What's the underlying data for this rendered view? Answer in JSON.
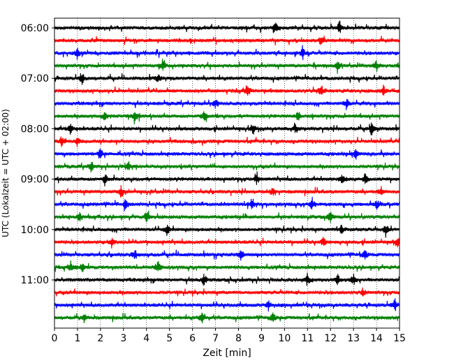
{
  "chart_data": {
    "type": "line",
    "title": "",
    "xlabel": "Zeit  [min]",
    "ylabel": "UTC (Lokalzeit = UTC + 02:00)",
    "xlim": [
      0,
      15
    ],
    "x_ticks": [
      "0",
      "1",
      "2",
      "3",
      "4",
      "5",
      "6",
      "7",
      "8",
      "9",
      "10",
      "11",
      "12",
      "13",
      "14",
      "15"
    ],
    "y_tick_labels": [
      "06:00",
      "07:00",
      "08:00",
      "09:00",
      "10:00",
      "11:00"
    ],
    "grid": "vertical dotted lines at each minute",
    "line_colors": [
      "#000000",
      "#ff0000",
      "#0000ff",
      "#008000"
    ],
    "rows": [
      {
        "time": "06:00",
        "color": "#000000",
        "events": [
          9.6,
          12.4
        ]
      },
      {
        "time": "06:15",
        "color": "#ff0000",
        "events": [
          11.6
        ]
      },
      {
        "time": "06:30",
        "color": "#0000ff",
        "events": [
          1.0,
          10.8
        ]
      },
      {
        "time": "06:45",
        "color": "#008000",
        "events": [
          4.7,
          12.3,
          14.0
        ]
      },
      {
        "time": "07:00",
        "color": "#000000",
        "events": [
          1.2,
          4.5
        ]
      },
      {
        "time": "07:15",
        "color": "#ff0000",
        "events": [
          8.4,
          11.6,
          14.3
        ]
      },
      {
        "time": "07:30",
        "color": "#0000ff",
        "events": [
          7.0,
          12.7
        ]
      },
      {
        "time": "07:45",
        "color": "#008000",
        "events": [
          2.2,
          3.5,
          6.5,
          10.6
        ]
      },
      {
        "time": "08:00",
        "color": "#000000",
        "events": [
          0.7,
          8.6,
          10.5,
          13.8
        ]
      },
      {
        "time": "08:15",
        "color": "#ff0000",
        "events": [
          0.3,
          1.0
        ]
      },
      {
        "time": "08:30",
        "color": "#0000ff",
        "events": [
          2.0,
          13.1
        ]
      },
      {
        "time": "08:45",
        "color": "#008000",
        "events": [
          1.6,
          3.2
        ]
      },
      {
        "time": "09:00",
        "color": "#000000",
        "events": [
          2.2,
          8.8,
          12.5,
          13.5
        ]
      },
      {
        "time": "09:15",
        "color": "#ff0000",
        "events": [
          2.9,
          9.5,
          14.2
        ]
      },
      {
        "time": "09:30",
        "color": "#0000ff",
        "events": [
          3.1,
          8.6,
          11.2,
          14.0
        ]
      },
      {
        "time": "09:45",
        "color": "#008000",
        "events": [
          1.1,
          4.0,
          12.0
        ]
      },
      {
        "time": "10:00",
        "color": "#000000",
        "events": [
          4.9,
          12.5,
          14.4
        ]
      },
      {
        "time": "10:15",
        "color": "#ff0000",
        "events": [
          2.5,
          11.7,
          14.9
        ]
      },
      {
        "time": "10:30",
        "color": "#0000ff",
        "events": [
          3.5,
          8.1,
          13.5
        ]
      },
      {
        "time": "10:45",
        "color": "#008000",
        "events": [
          0.7,
          1.2,
          4.5
        ]
      },
      {
        "time": "11:00",
        "color": "#000000",
        "events": [
          6.5,
          11.0,
          12.3,
          13.0
        ]
      },
      {
        "time": "11:15",
        "color": "#ff0000",
        "events": [
          13.4
        ]
      },
      {
        "time": "11:30",
        "color": "#0000ff",
        "events": [
          9.3,
          14.8
        ]
      },
      {
        "time": "11:45",
        "color": "#008000",
        "events": [
          1.3,
          6.4,
          9.5
        ]
      }
    ]
  }
}
